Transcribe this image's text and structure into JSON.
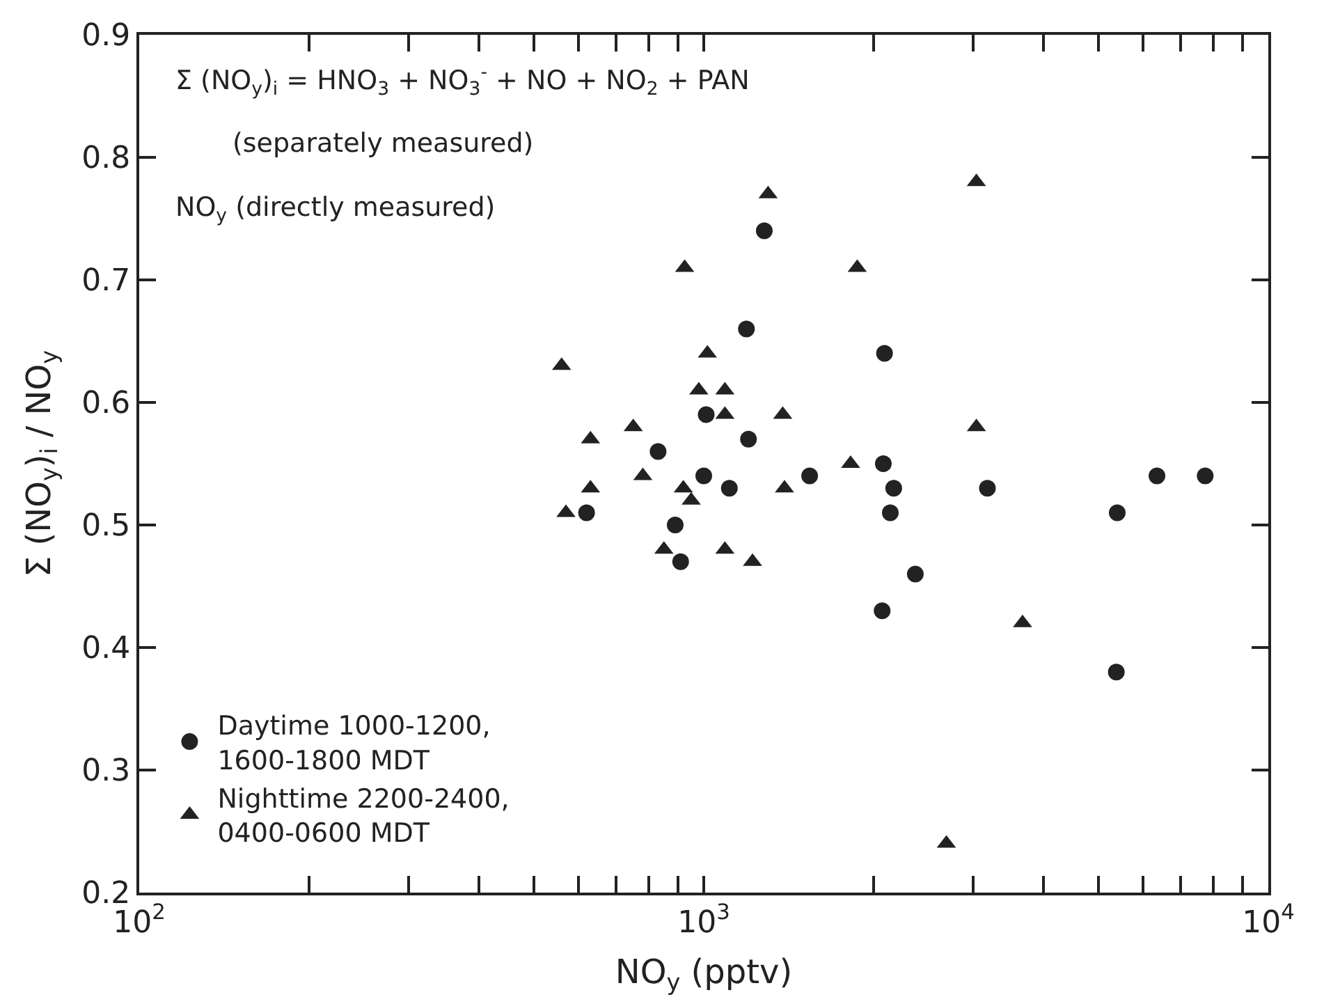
{
  "chart_data": {
    "type": "scatter",
    "xlabel": "NO$_{y}$ (pptv)",
    "ylabel": "Σ (NO$_{y}$)$_{i}$ / NO$_{y}$",
    "annotations": [
      "Σ (NO$_{y}$)$_{i}$ = HNO$_{3}$ + NO$_{3}$$^{-}$ + NO + NO$_{2}$ + PAN",
      "(separately measured)",
      "NO$_{y}$ (directly measured)"
    ],
    "log": "x",
    "xlim": [
      100,
      10000
    ],
    "xticks": [
      {
        "value": 100,
        "label": "10$^{2}$"
      },
      {
        "value": 200,
        "label": null
      },
      {
        "value": 300,
        "label": null
      },
      {
        "value": 400,
        "label": null
      },
      {
        "value": 500,
        "label": null
      },
      {
        "value": 600,
        "label": null
      },
      {
        "value": 700,
        "label": null
      },
      {
        "value": 800,
        "label": null
      },
      {
        "value": 900,
        "label": null
      },
      {
        "value": 1000,
        "label": "10$^{3}$"
      },
      {
        "value": 2000,
        "label": null
      },
      {
        "value": 3000,
        "label": null
      },
      {
        "value": 4000,
        "label": null
      },
      {
        "value": 5000,
        "label": null
      },
      {
        "value": 6000,
        "label": null
      },
      {
        "value": 7000,
        "label": null
      },
      {
        "value": 8000,
        "label": null
      },
      {
        "value": 9000,
        "label": null
      },
      {
        "value": 10000,
        "label": "10$^{4}$"
      }
    ],
    "ylim": [
      0.2,
      0.9
    ],
    "yticks": [
      0.2,
      0.3,
      0.4,
      0.5,
      0.6,
      0.7,
      0.8,
      0.9
    ],
    "legend": "bottom left",
    "series": [
      {
        "name": "Daytime 1000-1200,\n1600-1800 MDT",
        "color": "#222222",
        "marker": "circle",
        "x": [
          1280,
          1190,
          1010,
          1200,
          830,
          1000,
          1540,
          1110,
          620,
          890,
          910,
          2090,
          2080,
          2170,
          3180,
          6350,
          7730,
          2140,
          5400,
          2370,
          2070,
          5380
        ],
        "values": [
          0.74,
          0.66,
          0.59,
          0.57,
          0.56,
          0.54,
          0.54,
          0.53,
          0.51,
          0.5,
          0.47,
          0.64,
          0.55,
          0.53,
          0.53,
          0.54,
          0.54,
          0.51,
          0.51,
          0.46,
          0.43,
          0.38
        ]
      },
      {
        "name": "Nighttime 2200-2400,\n0400-0600 MDT",
        "color": "#222222",
        "marker": "triangle",
        "x": [
          1300,
          925,
          1870,
          1015,
          560,
          980,
          1090,
          1090,
          1380,
          750,
          630,
          1820,
          780,
          1390,
          630,
          920,
          950,
          570,
          850,
          1090,
          1220,
          3040,
          3040,
          3670,
          2690
        ],
        "values": [
          0.77,
          0.71,
          0.71,
          0.64,
          0.63,
          0.61,
          0.61,
          0.59,
          0.59,
          0.58,
          0.57,
          0.55,
          0.54,
          0.53,
          0.53,
          0.53,
          0.52,
          0.51,
          0.48,
          0.48,
          0.47,
          0.78,
          0.58,
          0.42,
          0.24
        ]
      }
    ]
  }
}
